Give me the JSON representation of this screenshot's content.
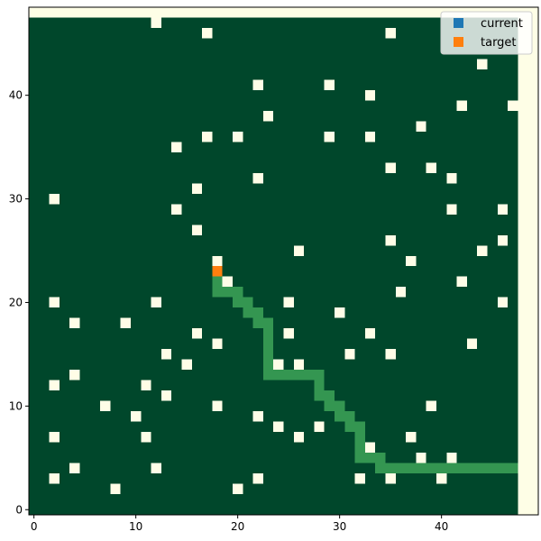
{
  "chart_data": {
    "type": "heatmap",
    "grid_size": 48,
    "xlim": [
      -0.5,
      49.5
    ],
    "ylim": [
      -0.5,
      48.5
    ],
    "grid": false,
    "legend_position": "top-right",
    "x_ticks": [
      0,
      10,
      20,
      30,
      40
    ],
    "y_ticks": [
      0,
      10,
      20,
      30,
      40
    ],
    "colors": {
      "background": "#fefee6",
      "free": "#00472b",
      "obstacle": "#fffde7",
      "path": "#349651",
      "current": "#1f77b4",
      "target": "#ff7f0e"
    },
    "legend": [
      {
        "label": "current",
        "color": "#1f77b4"
      },
      {
        "label": "target",
        "color": "#ff7f0e"
      }
    ],
    "obstacles": [
      [
        12,
        47
      ],
      [
        17,
        46
      ],
      [
        35,
        46
      ],
      [
        44,
        43
      ],
      [
        22,
        41
      ],
      [
        29,
        41
      ],
      [
        33,
        40
      ],
      [
        42,
        39
      ],
      [
        47,
        39
      ],
      [
        23,
        38
      ],
      [
        38,
        37
      ],
      [
        17,
        36
      ],
      [
        20,
        36
      ],
      [
        29,
        36
      ],
      [
        33,
        36
      ],
      [
        14,
        35
      ],
      [
        35,
        33
      ],
      [
        39,
        33
      ],
      [
        22,
        32
      ],
      [
        41,
        32
      ],
      [
        16,
        31
      ],
      [
        2,
        30
      ],
      [
        14,
        29
      ],
      [
        41,
        29
      ],
      [
        46,
        29
      ],
      [
        16,
        27
      ],
      [
        35,
        26
      ],
      [
        46,
        26
      ],
      [
        26,
        25
      ],
      [
        44,
        25
      ],
      [
        18,
        24
      ],
      [
        37,
        24
      ],
      [
        19,
        22
      ],
      [
        42,
        22
      ],
      [
        36,
        21
      ],
      [
        2,
        20
      ],
      [
        12,
        20
      ],
      [
        25,
        20
      ],
      [
        46,
        20
      ],
      [
        30,
        19
      ],
      [
        4,
        18
      ],
      [
        9,
        18
      ],
      [
        16,
        17
      ],
      [
        25,
        17
      ],
      [
        33,
        17
      ],
      [
        18,
        16
      ],
      [
        43,
        16
      ],
      [
        13,
        15
      ],
      [
        31,
        15
      ],
      [
        35,
        15
      ],
      [
        15,
        14
      ],
      [
        24,
        14
      ],
      [
        26,
        14
      ],
      [
        4,
        13
      ],
      [
        2,
        12
      ],
      [
        11,
        12
      ],
      [
        13,
        11
      ],
      [
        7,
        10
      ],
      [
        18,
        10
      ],
      [
        39,
        10
      ],
      [
        10,
        9
      ],
      [
        22,
        9
      ],
      [
        24,
        8
      ],
      [
        28,
        8
      ],
      [
        2,
        7
      ],
      [
        11,
        7
      ],
      [
        26,
        7
      ],
      [
        37,
        7
      ],
      [
        33,
        6
      ],
      [
        38,
        5
      ],
      [
        41,
        5
      ],
      [
        4,
        4
      ],
      [
        12,
        4
      ],
      [
        2,
        3
      ],
      [
        22,
        3
      ],
      [
        32,
        3
      ],
      [
        35,
        3
      ],
      [
        40,
        3
      ],
      [
        8,
        2
      ],
      [
        20,
        2
      ]
    ],
    "path": [
      [
        18,
        22
      ],
      [
        18,
        21
      ],
      [
        19,
        21
      ],
      [
        20,
        21
      ],
      [
        20,
        20
      ],
      [
        21,
        20
      ],
      [
        21,
        19
      ],
      [
        22,
        19
      ],
      [
        22,
        18
      ],
      [
        23,
        18
      ],
      [
        23,
        17
      ],
      [
        23,
        16
      ],
      [
        23,
        15
      ],
      [
        23,
        14
      ],
      [
        23,
        13
      ],
      [
        24,
        13
      ],
      [
        25,
        13
      ],
      [
        26,
        13
      ],
      [
        27,
        13
      ],
      [
        28,
        13
      ],
      [
        28,
        12
      ],
      [
        28,
        11
      ],
      [
        29,
        11
      ],
      [
        29,
        10
      ],
      [
        30,
        10
      ],
      [
        30,
        9
      ],
      [
        31,
        9
      ],
      [
        31,
        8
      ],
      [
        32,
        8
      ],
      [
        32,
        7
      ],
      [
        32,
        6
      ],
      [
        32,
        5
      ],
      [
        33,
        5
      ],
      [
        34,
        5
      ],
      [
        34,
        4
      ],
      [
        35,
        4
      ],
      [
        36,
        4
      ],
      [
        37,
        4
      ],
      [
        38,
        4
      ],
      [
        39,
        4
      ],
      [
        40,
        4
      ],
      [
        41,
        4
      ],
      [
        42,
        4
      ],
      [
        43,
        4
      ],
      [
        44,
        4
      ],
      [
        45,
        4
      ],
      [
        46,
        4
      ],
      [
        47,
        4
      ]
    ],
    "current": [
      18,
      23
    ],
    "target": [
      18,
      23
    ]
  }
}
